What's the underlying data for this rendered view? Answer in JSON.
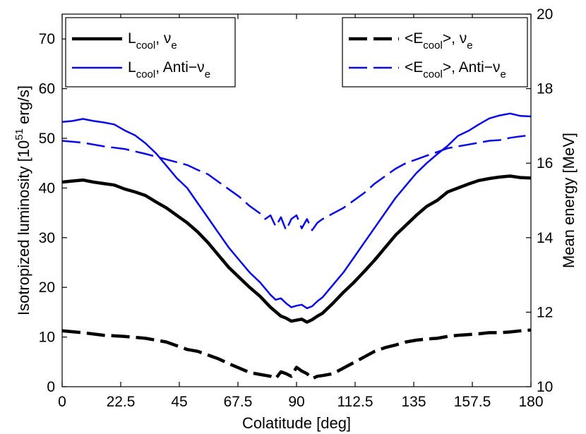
{
  "chart_data": {
    "type": "line",
    "xlabel": "Colatitude [deg]",
    "ylabel_left": {
      "main": "Isotropized luminosity [10",
      "sup": "51",
      "tail": " erg/s]"
    },
    "ylabel_right": "Mean energy [MeV]",
    "xlim": [
      0,
      180
    ],
    "ylim_left": [
      0,
      75
    ],
    "ylim_right": [
      10,
      20
    ],
    "x_ticks": [
      0,
      22.5,
      45,
      67.5,
      90,
      112.5,
      135,
      157.5,
      180
    ],
    "x_tick_labels": [
      "0",
      "22.5",
      "45",
      "67.5",
      "90",
      "112.5",
      "135",
      "157.5",
      "180"
    ],
    "y_left_ticks": [
      0,
      10,
      20,
      30,
      40,
      50,
      60,
      70
    ],
    "y_left_tick_labels": [
      "0",
      "10",
      "20",
      "30",
      "40",
      "50",
      "60",
      "70"
    ],
    "y_right_ticks": [
      10,
      12,
      14,
      16,
      18,
      20
    ],
    "y_right_tick_labels": [
      "10",
      "12",
      "14",
      "16",
      "18",
      "20"
    ],
    "grid": false,
    "legends": [
      {
        "placement": "top-left",
        "entries": [
          {
            "series": 0,
            "label_main": "L",
            "label_sub": "cool",
            "label_mid": ", ν",
            "label_sub2": "e",
            "label_tail": ""
          },
          {
            "series": 1,
            "label_main": "L",
            "label_sub": "cool",
            "label_mid": ", Anti−ν",
            "label_sub2": "e",
            "label_tail": ""
          }
        ]
      },
      {
        "placement": "top-right",
        "entries": [
          {
            "series": 2,
            "label_main": "<E",
            "label_sub": "cool",
            "label_mid": ">, ν",
            "label_sub2": "e",
            "label_tail": ""
          },
          {
            "series": 3,
            "label_main": "<E",
            "label_sub": "cool",
            "label_mid": ">, Anti−ν",
            "label_sub2": "e",
            "label_tail": ""
          }
        ]
      }
    ],
    "series": [
      {
        "axis": "left",
        "color": "#000000",
        "style": "solid",
        "width": 4.5,
        "points": [
          [
            0,
            41.2
          ],
          [
            4,
            41.4
          ],
          [
            8,
            41.6
          ],
          [
            12,
            41.2
          ],
          [
            16,
            40.9
          ],
          [
            20,
            40.6
          ],
          [
            24,
            39.8
          ],
          [
            28,
            39.2
          ],
          [
            32,
            38.5
          ],
          [
            36,
            37.2
          ],
          [
            40,
            36.0
          ],
          [
            44,
            34.5
          ],
          [
            48,
            33.0
          ],
          [
            52,
            31.2
          ],
          [
            56,
            29.0
          ],
          [
            60,
            26.5
          ],
          [
            64,
            24.0
          ],
          [
            68,
            22.0
          ],
          [
            72,
            20.0
          ],
          [
            76,
            18.2
          ],
          [
            80,
            16.0
          ],
          [
            84,
            14.2
          ],
          [
            86,
            13.8
          ],
          [
            88,
            13.2
          ],
          [
            90,
            13.4
          ],
          [
            92,
            13.6
          ],
          [
            94,
            13.0
          ],
          [
            96,
            13.5
          ],
          [
            98,
            14.2
          ],
          [
            100,
            14.8
          ],
          [
            104,
            16.8
          ],
          [
            108,
            19.0
          ],
          [
            112,
            21.0
          ],
          [
            116,
            23.2
          ],
          [
            120,
            25.5
          ],
          [
            124,
            28.0
          ],
          [
            128,
            30.5
          ],
          [
            132,
            32.5
          ],
          [
            136,
            34.5
          ],
          [
            140,
            36.3
          ],
          [
            144,
            37.5
          ],
          [
            148,
            39.2
          ],
          [
            152,
            40.0
          ],
          [
            156,
            40.8
          ],
          [
            160,
            41.5
          ],
          [
            164,
            41.9
          ],
          [
            168,
            42.2
          ],
          [
            172,
            42.4
          ],
          [
            176,
            42.1
          ],
          [
            180,
            42.0
          ]
        ]
      },
      {
        "axis": "left",
        "color": "#0a0ae6",
        "style": "solid",
        "width": 2.5,
        "points": [
          [
            0,
            53.3
          ],
          [
            4,
            53.5
          ],
          [
            8,
            53.9
          ],
          [
            12,
            53.5
          ],
          [
            16,
            53.2
          ],
          [
            20,
            52.8
          ],
          [
            24,
            51.6
          ],
          [
            28,
            50.6
          ],
          [
            32,
            49.0
          ],
          [
            36,
            47.0
          ],
          [
            40,
            44.5
          ],
          [
            44,
            42.0
          ],
          [
            48,
            40.0
          ],
          [
            52,
            37.0
          ],
          [
            56,
            34.0
          ],
          [
            60,
            31.0
          ],
          [
            64,
            28.0
          ],
          [
            68,
            25.5
          ],
          [
            72,
            23.0
          ],
          [
            76,
            21.0
          ],
          [
            80,
            18.5
          ],
          [
            82,
            17.5
          ],
          [
            84,
            17.8
          ],
          [
            86,
            16.8
          ],
          [
            88,
            16.0
          ],
          [
            90,
            16.3
          ],
          [
            92,
            16.5
          ],
          [
            94,
            15.8
          ],
          [
            96,
            16.2
          ],
          [
            98,
            17.2
          ],
          [
            100,
            18.0
          ],
          [
            104,
            20.5
          ],
          [
            108,
            23.0
          ],
          [
            112,
            26.0
          ],
          [
            116,
            29.0
          ],
          [
            120,
            32.0
          ],
          [
            124,
            35.0
          ],
          [
            128,
            38.0
          ],
          [
            132,
            40.5
          ],
          [
            136,
            43.0
          ],
          [
            140,
            45.0
          ],
          [
            144,
            46.8
          ],
          [
            148,
            48.5
          ],
          [
            152,
            50.5
          ],
          [
            156,
            51.5
          ],
          [
            160,
            52.8
          ],
          [
            164,
            54.0
          ],
          [
            168,
            54.6
          ],
          [
            172,
            55.0
          ],
          [
            176,
            54.5
          ],
          [
            180,
            54.4
          ]
        ]
      },
      {
        "axis": "right",
        "color": "#000000",
        "style": "dashed",
        "width": 4.5,
        "points": [
          [
            0,
            11.5
          ],
          [
            8,
            11.45
          ],
          [
            16,
            11.38
          ],
          [
            24,
            11.35
          ],
          [
            32,
            11.3
          ],
          [
            40,
            11.2
          ],
          [
            44,
            11.1
          ],
          [
            48,
            11.0
          ],
          [
            52,
            10.95
          ],
          [
            56,
            10.85
          ],
          [
            60,
            10.75
          ],
          [
            64,
            10.62
          ],
          [
            68,
            10.5
          ],
          [
            72,
            10.38
          ],
          [
            76,
            10.33
          ],
          [
            80,
            10.28
          ],
          [
            82,
            10.22
          ],
          [
            84,
            10.4
          ],
          [
            86,
            10.35
          ],
          [
            88,
            10.28
          ],
          [
            90,
            10.52
          ],
          [
            92,
            10.42
          ],
          [
            94,
            10.35
          ],
          [
            96,
            10.22
          ],
          [
            98,
            10.28
          ],
          [
            100,
            10.3
          ],
          [
            104,
            10.35
          ],
          [
            108,
            10.5
          ],
          [
            112,
            10.65
          ],
          [
            116,
            10.8
          ],
          [
            120,
            10.95
          ],
          [
            124,
            11.05
          ],
          [
            128,
            11.12
          ],
          [
            132,
            11.2
          ],
          [
            136,
            11.25
          ],
          [
            140,
            11.28
          ],
          [
            144,
            11.3
          ],
          [
            148,
            11.35
          ],
          [
            152,
            11.38
          ],
          [
            156,
            11.4
          ],
          [
            160,
            11.42
          ],
          [
            164,
            11.45
          ],
          [
            168,
            11.45
          ],
          [
            172,
            11.47
          ],
          [
            176,
            11.5
          ],
          [
            180,
            11.52
          ]
        ]
      },
      {
        "axis": "right",
        "color": "#0a0ae6",
        "style": "dashed",
        "width": 2.5,
        "points": [
          [
            0,
            16.6
          ],
          [
            8,
            16.55
          ],
          [
            16,
            16.45
          ],
          [
            24,
            16.38
          ],
          [
            32,
            16.25
          ],
          [
            40,
            16.1
          ],
          [
            48,
            15.95
          ],
          [
            52,
            15.82
          ],
          [
            56,
            15.7
          ],
          [
            60,
            15.5
          ],
          [
            64,
            15.3
          ],
          [
            68,
            15.1
          ],
          [
            72,
            14.85
          ],
          [
            76,
            14.65
          ],
          [
            78,
            14.5
          ],
          [
            80,
            14.6
          ],
          [
            82,
            14.3
          ],
          [
            84,
            14.55
          ],
          [
            86,
            14.2
          ],
          [
            88,
            14.5
          ],
          [
            90,
            14.6
          ],
          [
            92,
            14.25
          ],
          [
            94,
            14.5
          ],
          [
            96,
            14.2
          ],
          [
            98,
            14.4
          ],
          [
            100,
            14.5
          ],
          [
            104,
            14.65
          ],
          [
            108,
            14.8
          ],
          [
            112,
            15.0
          ],
          [
            116,
            15.2
          ],
          [
            120,
            15.45
          ],
          [
            124,
            15.65
          ],
          [
            128,
            15.85
          ],
          [
            132,
            16.0
          ],
          [
            136,
            16.1
          ],
          [
            140,
            16.2
          ],
          [
            144,
            16.3
          ],
          [
            148,
            16.4
          ],
          [
            152,
            16.45
          ],
          [
            156,
            16.5
          ],
          [
            160,
            16.55
          ],
          [
            164,
            16.6
          ],
          [
            168,
            16.62
          ],
          [
            172,
            16.68
          ],
          [
            176,
            16.72
          ],
          [
            180,
            16.75
          ]
        ]
      }
    ]
  }
}
